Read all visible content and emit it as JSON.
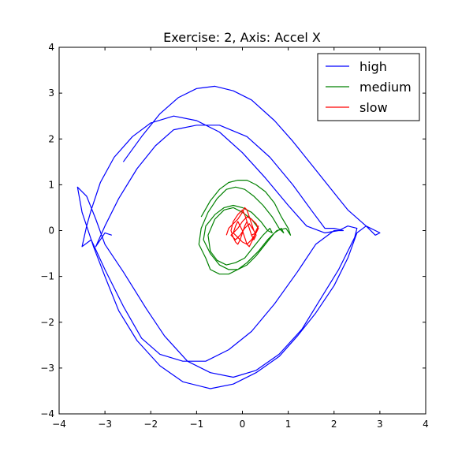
{
  "chart_data": {
    "type": "line",
    "title": "Exercise: 2, Axis: Accel X",
    "xlabel": "",
    "ylabel": "",
    "xlim": [
      -4,
      4
    ],
    "ylim": [
      -4,
      4
    ],
    "xticks": [
      -4,
      -3,
      -2,
      -1,
      0,
      1,
      2,
      3,
      4
    ],
    "yticks": [
      -4,
      -3,
      -2,
      -1,
      0,
      1,
      2,
      3,
      4
    ],
    "grid": false,
    "legend_position": "top-right",
    "series": [
      {
        "name": "high",
        "color": "#0000ff",
        "x": [
          -2.6,
          -2.2,
          -1.8,
          -1.4,
          -1.0,
          -0.6,
          -0.2,
          0.2,
          0.7,
          1.1,
          1.5,
          1.9,
          2.3,
          2.7,
          3.0,
          2.9,
          2.7,
          2.5,
          2.3,
          2.0,
          1.6,
          1.2,
          0.8,
          0.3,
          -0.2,
          -0.7,
          -1.3,
          -1.8,
          -2.3,
          -2.7,
          -3.0,
          -3.25,
          -3.5,
          -3.6,
          -3.4,
          -3.2,
          -3.0,
          -2.6,
          -2.1,
          -1.7,
          -1.2,
          -0.7,
          -0.2,
          0.3,
          0.8,
          1.3,
          1.7,
          2.1,
          2.45,
          2.5,
          2.3,
          2.1,
          1.8,
          1.4,
          1.0,
          0.5,
          0.0,
          -0.5,
          -1.0,
          -1.5,
          -2.0,
          -2.4,
          -2.8,
          -3.1,
          -3.3,
          -3.4,
          -3.5,
          -3.3,
          -3.0,
          -2.6,
          -2.2,
          -1.8,
          -1.3,
          -0.8,
          -0.3,
          0.2,
          0.7,
          1.2,
          1.6,
          2.0,
          2.2,
          2.0,
          1.8,
          1.5,
          1.1,
          0.6,
          0.1,
          -0.5,
          -1.0,
          -1.5,
          -1.9,
          -2.3,
          -2.7,
          -3.0,
          -3.2,
          -3.0,
          -2.85
        ],
        "y": [
          1.5,
          2.05,
          2.55,
          2.9,
          3.1,
          3.15,
          3.05,
          2.85,
          2.4,
          1.95,
          1.45,
          0.95,
          0.45,
          0.1,
          -0.05,
          -0.1,
          0.1,
          -0.05,
          -0.6,
          -1.2,
          -1.8,
          -2.3,
          -2.75,
          -3.1,
          -3.35,
          -3.45,
          -3.3,
          -2.95,
          -2.4,
          -1.75,
          -1.0,
          -0.35,
          0.4,
          0.95,
          0.75,
          0.25,
          -0.3,
          -0.9,
          -1.7,
          -2.3,
          -2.85,
          -3.1,
          -3.2,
          -3.05,
          -2.7,
          -2.15,
          -1.5,
          -0.85,
          -0.15,
          0.05,
          0.1,
          0.0,
          -0.05,
          0.1,
          0.55,
          1.15,
          1.7,
          2.15,
          2.4,
          2.5,
          2.35,
          2.05,
          1.6,
          1.05,
          0.45,
          0.1,
          -0.35,
          -0.2,
          -0.85,
          -1.65,
          -2.35,
          -2.7,
          -2.85,
          -2.85,
          -2.6,
          -2.2,
          -1.6,
          -0.9,
          -0.3,
          0.0,
          0.0,
          0.05,
          0.05,
          0.45,
          1.0,
          1.6,
          2.05,
          2.3,
          2.3,
          2.2,
          1.85,
          1.35,
          0.7,
          0.1,
          -0.35,
          -0.05,
          -0.1
        ]
      },
      {
        "name": "medium",
        "color": "#008000",
        "x": [
          -0.9,
          -0.7,
          -0.5,
          -0.3,
          -0.1,
          0.1,
          0.3,
          0.5,
          0.7,
          0.85,
          1.0,
          1.05,
          0.95,
          0.75,
          0.55,
          0.35,
          0.1,
          -0.1,
          -0.3,
          -0.5,
          -0.7,
          -0.8,
          -0.95,
          -0.9,
          -0.75,
          -0.55,
          -0.35,
          -0.15,
          0.05,
          0.25,
          0.45,
          0.65,
          0.8,
          0.9,
          0.85,
          0.7,
          0.5,
          0.3,
          0.1,
          -0.1,
          -0.3,
          -0.5,
          -0.7,
          -0.85,
          -0.8,
          -0.6,
          -0.4,
          -0.2,
          0.0,
          0.2,
          0.4,
          0.55,
          0.65,
          0.6,
          0.45,
          0.25,
          0.05,
          -0.15,
          -0.35,
          -0.55,
          -0.7,
          -0.75,
          -0.6,
          -0.4,
          -0.2,
          0.0,
          0.2,
          0.35
        ],
        "y": [
          0.3,
          0.65,
          0.9,
          1.05,
          1.1,
          1.1,
          1.0,
          0.85,
          0.6,
          0.3,
          0.05,
          -0.1,
          0.05,
          0.0,
          -0.2,
          -0.45,
          -0.7,
          -0.85,
          -0.95,
          -0.95,
          -0.85,
          -0.6,
          -0.3,
          0.05,
          0.4,
          0.7,
          0.9,
          0.95,
          0.9,
          0.75,
          0.55,
          0.3,
          0.05,
          -0.05,
          0.05,
          -0.05,
          -0.3,
          -0.55,
          -0.75,
          -0.85,
          -0.85,
          -0.75,
          -0.5,
          -0.2,
          0.1,
          0.35,
          0.5,
          0.55,
          0.5,
          0.4,
          0.2,
          0.0,
          -0.05,
          0.05,
          -0.1,
          -0.35,
          -0.6,
          -0.7,
          -0.75,
          -0.65,
          -0.45,
          -0.1,
          0.25,
          0.45,
          0.5,
          0.4,
          0.25,
          0.05
        ]
      },
      {
        "name": "slow",
        "color": "#ff0000",
        "x": [
          -0.35,
          -0.3,
          -0.2,
          -0.1,
          0.0,
          0.05,
          0.1,
          0.15,
          0.2,
          0.25,
          0.3,
          0.25,
          0.2,
          0.15,
          0.1,
          0.05,
          0.0,
          -0.05,
          -0.1,
          -0.15,
          -0.2,
          -0.25,
          -0.2,
          -0.1,
          0.0,
          0.05,
          0.1,
          0.15,
          0.2,
          0.3,
          0.35,
          0.3,
          0.25,
          0.2,
          0.15,
          0.1,
          0.05,
          0.0,
          -0.05,
          -0.1,
          -0.15,
          -0.2,
          -0.1,
          0.0,
          0.1,
          0.2,
          0.3,
          0.35,
          0.3,
          0.2,
          0.1,
          0.0,
          -0.1,
          -0.2,
          -0.25,
          -0.15,
          -0.05,
          0.05,
          0.15,
          0.25
        ],
        "y": [
          -0.1,
          0.05,
          0.15,
          0.25,
          0.4,
          0.5,
          0.45,
          0.3,
          0.15,
          0.0,
          -0.1,
          -0.2,
          -0.1,
          0.05,
          0.2,
          0.1,
          -0.05,
          -0.2,
          -0.3,
          -0.25,
          -0.15,
          0.0,
          0.2,
          0.35,
          0.45,
          0.35,
          0.2,
          0.05,
          -0.1,
          -0.05,
          0.1,
          0.0,
          -0.15,
          -0.25,
          -0.35,
          -0.3,
          -0.15,
          0.0,
          0.1,
          0.2,
          0.1,
          -0.05,
          -0.15,
          -0.25,
          -0.3,
          -0.2,
          -0.05,
          0.05,
          0.15,
          0.25,
          0.3,
          0.2,
          0.05,
          -0.05,
          -0.1,
          -0.2,
          -0.1,
          0.05,
          0.15,
          0.0
        ]
      }
    ]
  }
}
